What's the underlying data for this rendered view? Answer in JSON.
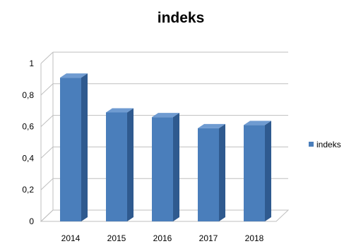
{
  "chart_data": {
    "type": "bar",
    "title": "indeks",
    "categories": [
      "2014",
      "2015",
      "2016",
      "2017",
      "2018"
    ],
    "series": [
      {
        "name": "indeks",
        "values": [
          0.91,
          0.69,
          0.66,
          0.59,
          0.61
        ]
      }
    ],
    "y_ticks": [
      "0",
      "0,2",
      "0,4",
      "0,6",
      "0,8",
      "1"
    ],
    "ylim": [
      0,
      1
    ],
    "grid": true,
    "legend_position": "right",
    "style": "3d-column",
    "colors": {
      "bar_front": "#4a7ebb",
      "bar_side": "#2f5a8f",
      "bar_top": "#6f9bd1",
      "grid": "#bfbfbf"
    }
  }
}
